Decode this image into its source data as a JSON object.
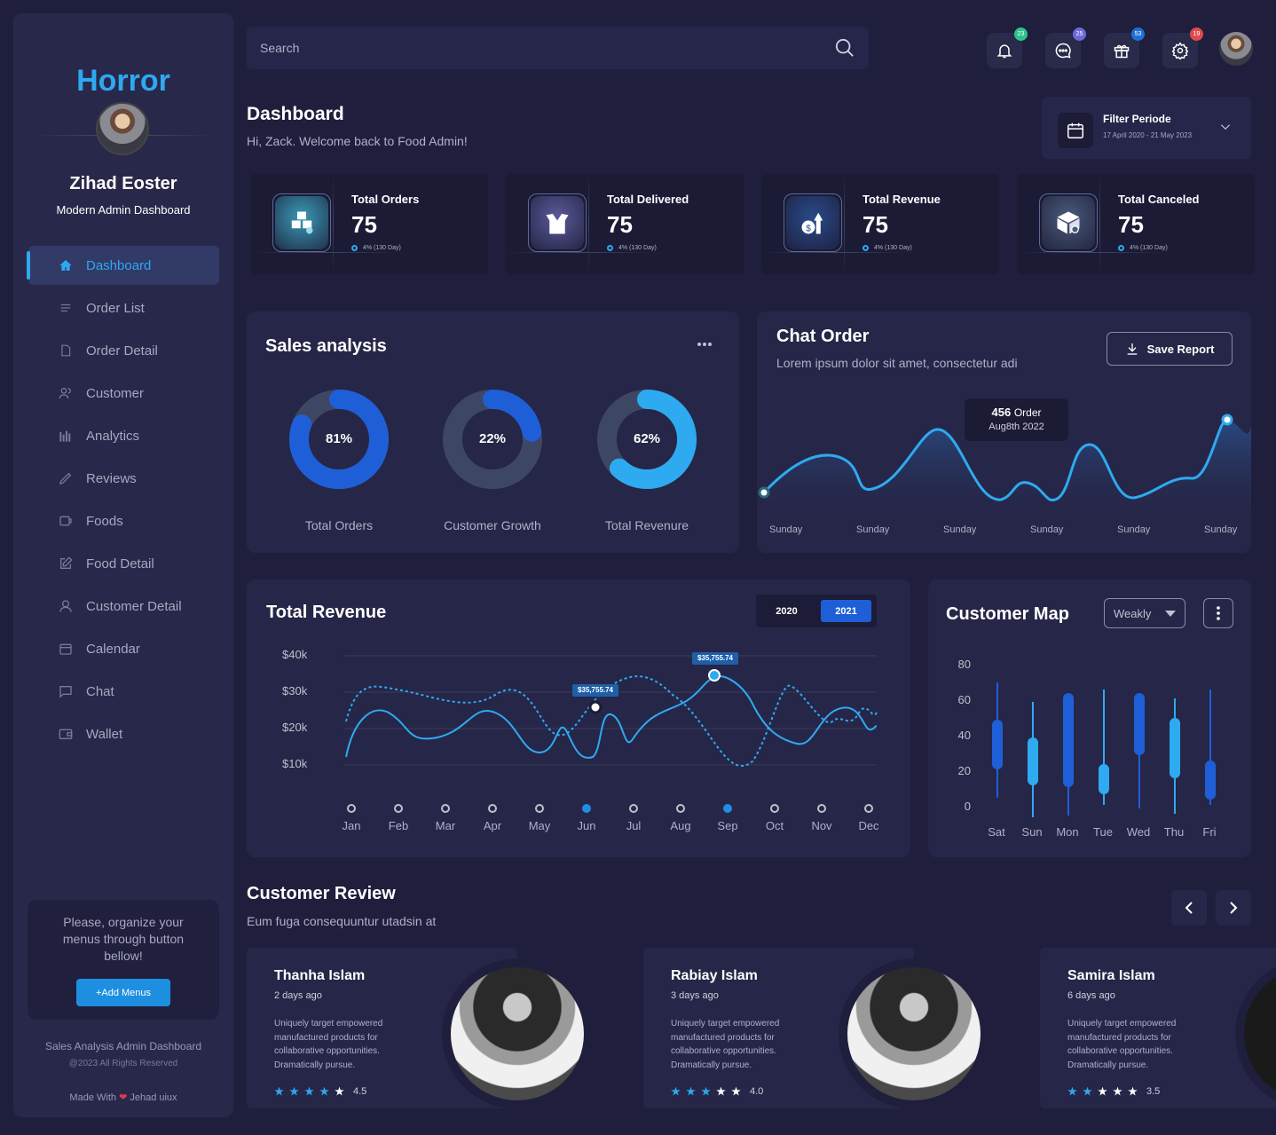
{
  "brand": "Horror",
  "profile": {
    "name": "Zihad Eoster",
    "subtitle": "Modern Admin Dashboard"
  },
  "nav": [
    {
      "label": "Dashboard",
      "icon": "home-icon",
      "active": true
    },
    {
      "label": "Order List",
      "icon": "list-icon"
    },
    {
      "label": "Order Detail",
      "icon": "document-icon"
    },
    {
      "label": "Customer",
      "icon": "users-icon"
    },
    {
      "label": "Analytics",
      "icon": "bar-chart-icon"
    },
    {
      "label": "Reviews",
      "icon": "pen-icon"
    },
    {
      "label": "Foods",
      "icon": "food-icon"
    },
    {
      "label": "Food Detail",
      "icon": "edit-icon"
    },
    {
      "label": "Customer Detail",
      "icon": "user-icon"
    },
    {
      "label": "Calendar",
      "icon": "calendar-icon"
    },
    {
      "label": "Chat",
      "icon": "chat-icon"
    },
    {
      "label": "Wallet",
      "icon": "wallet-icon"
    }
  ],
  "promo": {
    "text": "Please, organize your menus through button bellow!",
    "button": "+Add Menus"
  },
  "footer": {
    "title": "Sales Analysis Admin Dashboard",
    "copyright": "@2023 All Rights Reserved",
    "made_with": "Made With",
    "author": "Jehad uiux"
  },
  "search": {
    "placeholder": "Search"
  },
  "top_icons": [
    {
      "icon": "bell-icon",
      "badge": "23",
      "color": "#2fc18c"
    },
    {
      "icon": "message-icon",
      "badge": "25",
      "color": "#6a6ad8"
    },
    {
      "icon": "gift-icon",
      "badge": "53",
      "color": "#1e6fd8"
    },
    {
      "icon": "gear-icon",
      "badge": "19",
      "color": "#e04a4a"
    }
  ],
  "header": {
    "title": "Dashboard",
    "subtitle": "Hi, Zack. Welcome back to Food Admin!"
  },
  "filter": {
    "label": "Filter Periode",
    "range": "17 April 2020 - 21 May 2023"
  },
  "stats": [
    {
      "title": "Total Orders",
      "value": "75",
      "delta": "4% (130 Day)",
      "icon": "boxes-icon",
      "color": "#3a9ab8"
    },
    {
      "title": "Total Delivered",
      "value": "75",
      "delta": "4% (130 Day)",
      "icon": "open-box-icon",
      "color": "#5a5a9a"
    },
    {
      "title": "Total Revenue",
      "value": "75",
      "delta": "4% (130 Day)",
      "icon": "revenue-icon",
      "color": "#2a4a8a"
    },
    {
      "title": "Total Canceled",
      "value": "75",
      "delta": "4% (130 Day)",
      "icon": "cancel-box-icon",
      "color": "#4a5a7a"
    }
  ],
  "sales": {
    "title": "Sales analysis",
    "donuts": [
      {
        "label": "Total Orders",
        "value": 81,
        "text": "81%",
        "color": "#1e5fd8"
      },
      {
        "label": "Customer Growth",
        "value": 22,
        "text": "22%",
        "color": "#1e5fd8"
      },
      {
        "label": "Total Revenure",
        "value": 62,
        "text": "62%",
        "color": "#2eaaf0"
      }
    ]
  },
  "chat_order": {
    "title": "Chat Order",
    "subtitle": "Lorem ipsum dolor sit amet, consectetur adi",
    "button": "Save Report",
    "tooltip_value": "456",
    "tooltip_unit": "Order",
    "tooltip_date": "Aug8th 2022",
    "xlabels": [
      "Sunday",
      "Sunday",
      "Sunday",
      "Sunday",
      "Sunday",
      "Sunday"
    ]
  },
  "revenue": {
    "title": "Total Revenue",
    "years": [
      "2020",
      "2021"
    ],
    "active_year": "2021",
    "ylabels": [
      "$40k",
      "$30k",
      "$20k",
      "$10k"
    ],
    "months": [
      "Jan",
      "Feb",
      "Mar",
      "Apr",
      "May",
      "Jun",
      "Jul",
      "Aug",
      "Sep",
      "Oct",
      "Nov",
      "Dec"
    ],
    "active_months": [
      "Jun",
      "Sep"
    ],
    "tip1": "$35,755.74",
    "tip2": "$35,755.74"
  },
  "customer_map": {
    "title": "Customer Map",
    "dropdown": "Weakly",
    "ylabels": [
      "80",
      "60",
      "40",
      "20",
      "0"
    ],
    "days": [
      "Sat",
      "Sun",
      "Mon",
      "Tue",
      "Wed",
      "Thu",
      "Fri"
    ]
  },
  "reviews": {
    "title": "Customer Review",
    "subtitle": "Eum fuga consequuntur utadsin at",
    "items": [
      {
        "name": "Thanha Islam",
        "ago": "2 days ago",
        "text": "Uniquely target empowered manufactured products for collaborative opportunities. Dramatically pursue.",
        "rating": "4.5",
        "stars": 4
      },
      {
        "name": "Rabiay Islam",
        "ago": "3 days ago",
        "text": "Uniquely target empowered manufactured products for collaborative opportunities. Dramatically pursue.",
        "rating": "4.0",
        "stars": 3
      },
      {
        "name": "Samira Islam",
        "ago": "6 days ago",
        "text": "Uniquely target empowered manufactured products for collaborative opportunities. Dramatically pursue.",
        "rating": "3.5",
        "stars": 2
      }
    ]
  }
}
